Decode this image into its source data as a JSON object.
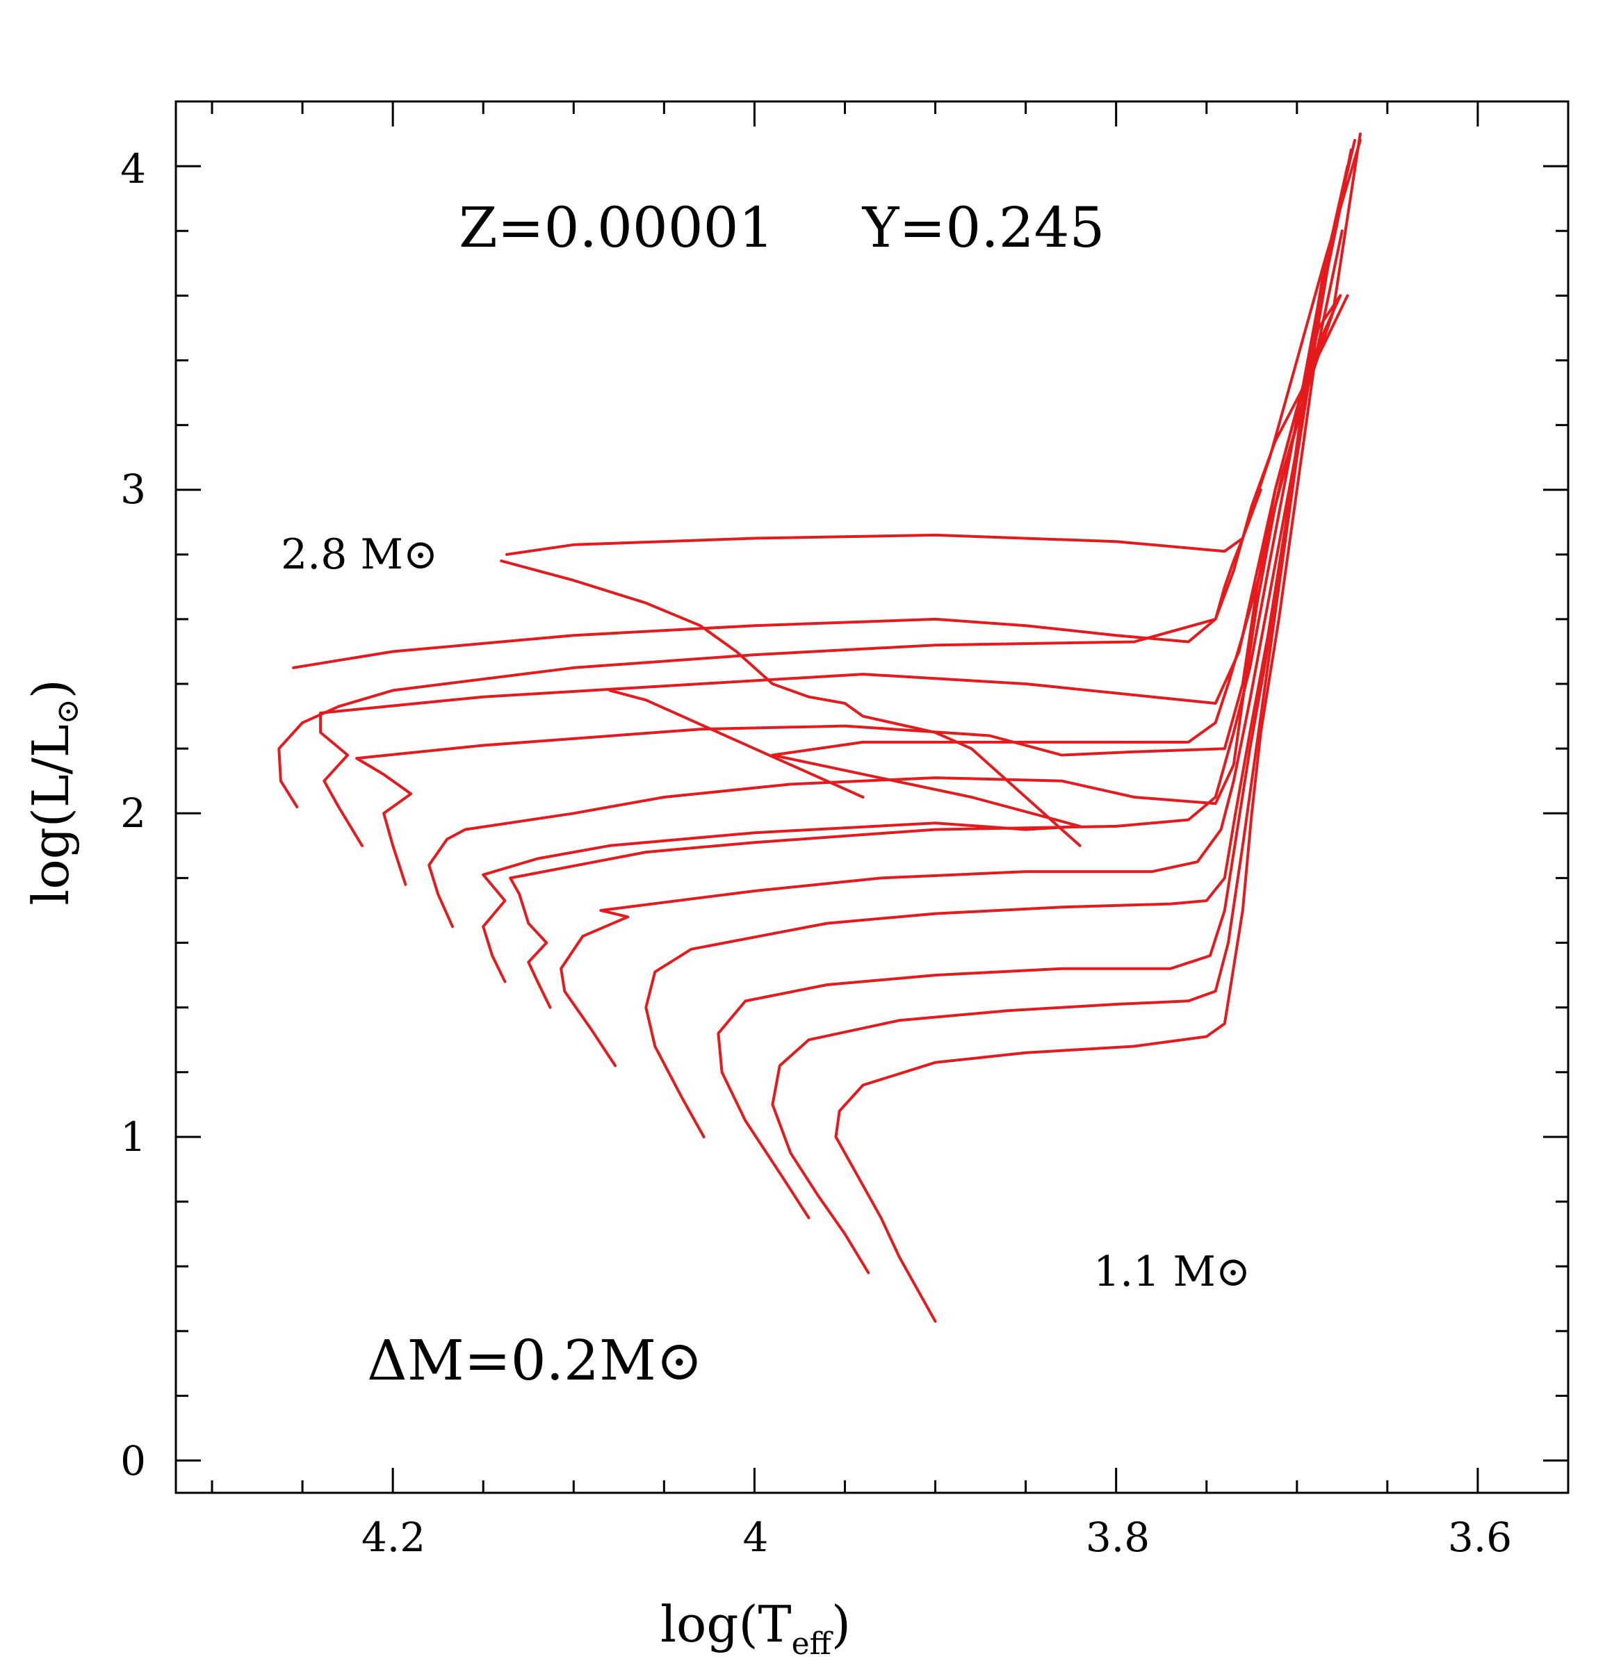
{
  "chart_data": {
    "type": "line",
    "title": "",
    "xlabel": "log(T_eff)",
    "ylabel": "log(L/L_sun)",
    "xlim": [
      4.32,
      3.55
    ],
    "ylim": [
      -0.1,
      4.2
    ],
    "x_reversed": true,
    "x_ticks": [
      "4.2",
      "4",
      "3.8",
      "3.6"
    ],
    "y_ticks": [
      "0",
      "1",
      "2",
      "3",
      "4"
    ],
    "grid": false,
    "line_color": "#e41a1c",
    "annotations": {
      "composition": "Z=0.00001     Y=0.245",
      "top_mass": "2.8 M⊙",
      "bottom_mass": "1.1 M⊙",
      "mass_step": "ΔM=0.2M⊙"
    },
    "series": [
      {
        "points": [
          [
            3.9,
            0.43
          ],
          [
            3.91,
            0.53
          ],
          [
            3.92,
            0.63
          ],
          [
            3.93,
            0.75
          ],
          [
            3.945,
            0.9
          ],
          [
            3.955,
            1.0
          ],
          [
            3.953,
            1.08
          ],
          [
            3.94,
            1.16
          ],
          [
            3.9,
            1.23
          ],
          [
            3.85,
            1.26
          ],
          [
            3.79,
            1.28
          ],
          [
            3.75,
            1.31
          ],
          [
            3.74,
            1.35
          ],
          [
            3.73,
            1.7
          ],
          [
            3.725,
            2.0
          ],
          [
            3.72,
            2.25
          ],
          [
            3.71,
            2.6
          ],
          [
            3.7,
            3.0
          ],
          [
            3.69,
            3.4
          ],
          [
            3.675,
            3.8
          ]
        ]
      },
      {
        "points": [
          [
            3.937,
            0.58
          ],
          [
            3.95,
            0.7
          ],
          [
            3.965,
            0.82
          ],
          [
            3.98,
            0.95
          ],
          [
            3.99,
            1.1
          ],
          [
            3.986,
            1.22
          ],
          [
            3.97,
            1.3
          ],
          [
            3.92,
            1.36
          ],
          [
            3.86,
            1.39
          ],
          [
            3.8,
            1.41
          ],
          [
            3.76,
            1.42
          ],
          [
            3.745,
            1.45
          ],
          [
            3.738,
            1.6
          ],
          [
            3.73,
            1.9
          ],
          [
            3.725,
            2.1
          ],
          [
            3.72,
            2.3
          ],
          [
            3.71,
            2.7
          ],
          [
            3.7,
            3.1
          ],
          [
            3.69,
            3.45
          ],
          [
            3.678,
            3.85
          ]
        ]
      },
      {
        "points": [
          [
            3.97,
            0.75
          ],
          [
            3.985,
            0.88
          ],
          [
            4.005,
            1.05
          ],
          [
            4.018,
            1.2
          ],
          [
            4.02,
            1.32
          ],
          [
            4.005,
            1.42
          ],
          [
            3.96,
            1.47
          ],
          [
            3.9,
            1.5
          ],
          [
            3.83,
            1.52
          ],
          [
            3.77,
            1.52
          ],
          [
            3.748,
            1.56
          ],
          [
            3.74,
            1.7
          ],
          [
            3.733,
            1.95
          ],
          [
            3.726,
            2.2
          ],
          [
            3.718,
            2.45
          ],
          [
            3.708,
            2.8
          ],
          [
            3.698,
            3.2
          ],
          [
            3.688,
            3.55
          ],
          [
            3.673,
            3.95
          ]
        ]
      },
      {
        "points": [
          [
            4.028,
            1.0
          ],
          [
            4.04,
            1.12
          ],
          [
            4.055,
            1.28
          ],
          [
            4.06,
            1.4
          ],
          [
            4.055,
            1.51
          ],
          [
            4.035,
            1.58
          ],
          [
            3.96,
            1.66
          ],
          [
            3.9,
            1.69
          ],
          [
            3.83,
            1.71
          ],
          [
            3.77,
            1.72
          ],
          [
            3.75,
            1.73
          ],
          [
            3.74,
            1.8
          ],
          [
            3.734,
            2.0
          ],
          [
            3.726,
            2.25
          ],
          [
            3.716,
            2.55
          ],
          [
            3.706,
            2.9
          ],
          [
            3.696,
            3.3
          ],
          [
            3.686,
            3.65
          ],
          [
            3.672,
            4.0
          ]
        ]
      },
      {
        "points": [
          [
            4.077,
            1.22
          ],
          [
            4.09,
            1.33
          ],
          [
            4.105,
            1.45
          ],
          [
            4.107,
            1.52
          ],
          [
            4.095,
            1.62
          ],
          [
            4.07,
            1.68
          ],
          [
            4.085,
            1.7
          ],
          [
            4.0,
            1.76
          ],
          [
            3.93,
            1.8
          ],
          [
            3.85,
            1.82
          ],
          [
            3.78,
            1.82
          ],
          [
            3.755,
            1.85
          ],
          [
            3.742,
            1.95
          ],
          [
            3.735,
            2.1
          ],
          [
            3.726,
            2.35
          ],
          [
            3.716,
            2.65
          ],
          [
            3.706,
            2.95
          ],
          [
            3.696,
            3.25
          ],
          [
            3.686,
            3.6
          ],
          [
            3.67,
            4.05
          ]
        ]
      },
      {
        "points": [
          [
            4.113,
            1.4
          ],
          [
            4.12,
            1.48
          ],
          [
            4.125,
            1.54
          ],
          [
            4.115,
            1.6
          ],
          [
            4.125,
            1.66
          ],
          [
            4.13,
            1.75
          ],
          [
            4.135,
            1.8
          ],
          [
            4.06,
            1.88
          ],
          [
            4.0,
            1.91
          ],
          [
            3.9,
            1.95
          ],
          [
            3.8,
            1.96
          ],
          [
            3.76,
            1.98
          ],
          [
            3.745,
            2.05
          ],
          [
            3.735,
            2.25
          ],
          [
            3.726,
            2.45
          ],
          [
            3.716,
            2.75
          ],
          [
            3.704,
            3.1
          ],
          [
            3.694,
            3.4
          ],
          [
            3.684,
            3.7
          ],
          [
            3.668,
            4.08
          ]
        ]
      },
      {
        "points": [
          [
            4.138,
            1.48
          ],
          [
            4.145,
            1.56
          ],
          [
            4.15,
            1.65
          ],
          [
            4.138,
            1.73
          ],
          [
            4.15,
            1.81
          ],
          [
            4.12,
            1.86
          ],
          [
            4.08,
            1.9
          ],
          [
            4.0,
            1.94
          ],
          [
            3.9,
            1.97
          ],
          [
            3.85,
            1.95
          ],
          [
            3.82,
            1.96
          ],
          [
            3.88,
            2.05
          ],
          [
            3.99,
            2.18
          ],
          [
            3.94,
            2.22
          ],
          [
            3.84,
            2.22
          ],
          [
            3.76,
            2.22
          ],
          [
            3.745,
            2.28
          ],
          [
            3.738,
            2.4
          ],
          [
            3.73,
            2.55
          ],
          [
            3.72,
            2.75
          ],
          [
            3.708,
            3.05
          ],
          [
            3.695,
            3.3
          ],
          [
            3.68,
            3.55
          ],
          [
            3.665,
            4.1
          ]
        ]
      },
      {
        "points": [
          [
            4.167,
            1.65
          ],
          [
            4.175,
            1.75
          ],
          [
            4.18,
            1.84
          ],
          [
            4.17,
            1.92
          ],
          [
            4.16,
            1.95
          ],
          [
            4.1,
            2.0
          ],
          [
            4.05,
            2.05
          ],
          [
            3.98,
            2.09
          ],
          [
            3.9,
            2.11
          ],
          [
            3.83,
            2.1
          ],
          [
            3.79,
            2.05
          ],
          [
            3.745,
            2.03
          ],
          [
            3.735,
            2.15
          ],
          [
            3.73,
            2.35
          ],
          [
            3.722,
            2.65
          ],
          [
            3.712,
            2.95
          ],
          [
            3.7,
            3.2
          ],
          [
            3.69,
            3.4
          ],
          [
            3.68,
            3.55
          ]
        ]
      },
      {
        "points": [
          [
            4.193,
            1.78
          ],
          [
            4.2,
            1.9
          ],
          [
            4.205,
            2.0
          ],
          [
            4.19,
            2.06
          ],
          [
            4.205,
            2.12
          ],
          [
            4.22,
            2.17
          ],
          [
            4.15,
            2.21
          ],
          [
            4.03,
            2.26
          ],
          [
            3.95,
            2.27
          ],
          [
            3.87,
            2.24
          ],
          [
            3.83,
            2.18
          ],
          [
            3.79,
            2.19
          ],
          [
            3.74,
            2.2
          ],
          [
            3.73,
            2.4
          ],
          [
            3.722,
            2.7
          ],
          [
            3.712,
            3.0
          ],
          [
            3.7,
            3.25
          ],
          [
            3.688,
            3.5
          ],
          [
            3.676,
            3.6
          ]
        ]
      },
      {
        "points": [
          [
            4.217,
            1.9
          ],
          [
            4.23,
            2.02
          ],
          [
            4.238,
            2.1
          ],
          [
            4.225,
            2.18
          ],
          [
            4.24,
            2.25
          ],
          [
            4.24,
            2.31
          ],
          [
            4.15,
            2.36
          ],
          [
            4.03,
            2.4
          ],
          [
            3.94,
            2.43
          ],
          [
            3.85,
            2.4
          ],
          [
            3.78,
            2.36
          ],
          [
            3.745,
            2.34
          ],
          [
            3.732,
            2.5
          ],
          [
            3.722,
            2.75
          ],
          [
            3.712,
            3.0
          ],
          [
            3.7,
            3.25
          ],
          [
            3.688,
            3.45
          ],
          [
            3.676,
            3.6
          ]
        ]
      },
      {
        "points": [
          [
            4.253,
            2.02
          ],
          [
            4.262,
            2.1
          ],
          [
            4.263,
            2.2
          ],
          [
            4.25,
            2.28
          ],
          [
            4.23,
            2.33
          ],
          [
            4.2,
            2.38
          ],
          [
            4.1,
            2.45
          ],
          [
            4.0,
            2.49
          ],
          [
            3.9,
            2.52
          ],
          [
            3.79,
            2.53
          ],
          [
            3.745,
            2.6
          ],
          [
            3.735,
            2.75
          ],
          [
            3.725,
            2.95
          ],
          [
            3.712,
            3.15
          ],
          [
            3.698,
            3.3
          ],
          [
            3.685,
            3.45
          ],
          [
            3.672,
            3.6
          ]
        ]
      },
      {
        "points": [
          [
            4.255,
            2.45
          ],
          [
            4.2,
            2.5
          ],
          [
            4.1,
            2.55
          ],
          [
            4.0,
            2.58
          ],
          [
            3.9,
            2.6
          ],
          [
            3.85,
            2.58
          ],
          [
            3.8,
            2.55
          ],
          [
            3.76,
            2.53
          ],
          [
            3.745,
            2.6
          ],
          [
            3.74,
            2.7
          ],
          [
            3.735,
            2.78
          ],
          [
            3.73,
            2.85
          ],
          [
            3.72,
            3.0
          ]
        ]
      },
      {
        "points": [
          [
            4.137,
            2.8
          ],
          [
            4.1,
            2.83
          ],
          [
            4.0,
            2.85
          ],
          [
            3.9,
            2.86
          ],
          [
            3.8,
            2.84
          ],
          [
            3.74,
            2.81
          ],
          [
            3.73,
            2.85
          ],
          [
            3.715,
            3.1
          ],
          [
            3.7,
            3.4
          ],
          [
            3.685,
            3.7
          ],
          [
            3.665,
            4.08
          ]
        ]
      },
      {
        "points": [
          [
            4.14,
            2.78
          ],
          [
            4.1,
            2.72
          ],
          [
            4.06,
            2.65
          ],
          [
            4.03,
            2.58
          ],
          [
            4.01,
            2.5
          ],
          [
            4.0,
            2.45
          ],
          [
            3.99,
            2.4
          ],
          [
            3.97,
            2.36
          ],
          [
            3.95,
            2.34
          ],
          [
            3.94,
            2.3
          ],
          [
            3.9,
            2.25
          ],
          [
            3.88,
            2.2
          ],
          [
            3.86,
            2.1
          ],
          [
            3.84,
            2.0
          ],
          [
            3.83,
            1.95
          ],
          [
            3.82,
            1.9
          ]
        ]
      },
      {
        "points": [
          [
            3.94,
            2.05
          ],
          [
            3.96,
            2.1
          ],
          [
            3.98,
            2.15
          ],
          [
            4.0,
            2.2
          ],
          [
            4.02,
            2.25
          ],
          [
            4.04,
            2.3
          ],
          [
            4.06,
            2.35
          ],
          [
            4.08,
            2.38
          ]
        ]
      }
    ]
  }
}
